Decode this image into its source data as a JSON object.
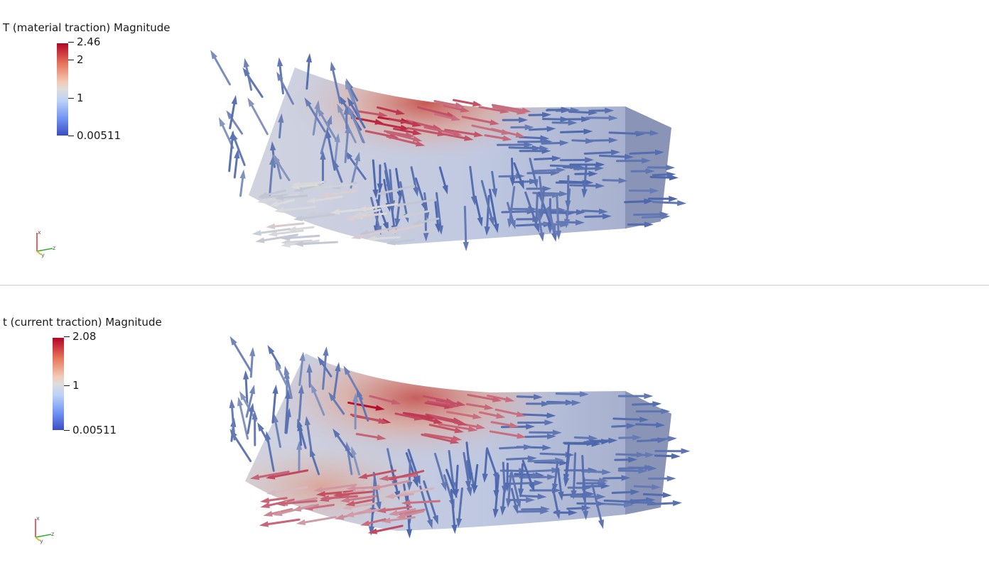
{
  "views": [
    {
      "legend_title": "T (material traction) Magnitude",
      "ticks": [
        "2.46",
        "2",
        "1",
        "0.00511"
      ],
      "tick_fractions": [
        1.0,
        0.8155,
        0.4076,
        0.0
      ],
      "axis_labels": [
        "x",
        "y",
        "z"
      ]
    },
    {
      "legend_title": "t (current traction) Magnitude",
      "ticks": [
        "2.08",
        "1",
        "0.00511"
      ],
      "tick_fractions": [
        1.0,
        0.4795,
        0.0
      ],
      "axis_labels": [
        "x",
        "y",
        "z"
      ]
    }
  ],
  "colors": {
    "high": "#b40426",
    "mid": "#dddcdc",
    "low": "#3b4cc0",
    "low_arrow": "#3d5aa8"
  }
}
